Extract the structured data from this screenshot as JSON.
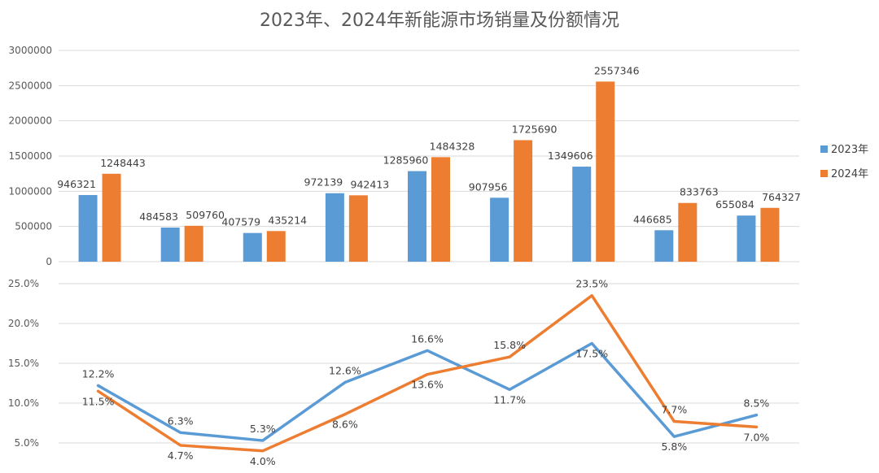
{
  "chart_data": [
    {
      "type": "bar",
      "title": "2023年、2024年新能源市场销量及份额情况",
      "categories": [
        "",
        "",
        "",
        "",
        "",
        "",
        "",
        "",
        ""
      ],
      "series": [
        {
          "name": "2023年",
          "color": "#5b9bd5",
          "values": [
            946321,
            484583,
            407579,
            972139,
            1285960,
            907956,
            1349606,
            446685,
            655084
          ]
        },
        {
          "name": "2024年",
          "color": "#ed7d31",
          "values": [
            1248443,
            509760,
            435214,
            942413,
            1484328,
            1725690,
            2557346,
            833763,
            764327
          ]
        }
      ],
      "ylim": [
        0,
        3000000
      ],
      "yticks": [
        "0",
        "500000",
        "1000000",
        "1500000",
        "2000000",
        "2500000",
        "3000000"
      ],
      "grid": true,
      "legend": "right"
    },
    {
      "type": "line",
      "series": [
        {
          "name": "2023年",
          "color": "#5b9bd5",
          "values": [
            12.2,
            6.3,
            5.3,
            12.6,
            16.6,
            11.7,
            17.5,
            5.8,
            8.5
          ],
          "labels": [
            "12.2%",
            "6.3%",
            "5.3%",
            "12.6%",
            "16.6%",
            "11.7%",
            "17.5%",
            "5.8%",
            "8.5%"
          ]
        },
        {
          "name": "2024年",
          "color": "#ed7d31",
          "values": [
            11.5,
            4.7,
            4.0,
            8.6,
            13.6,
            15.8,
            23.5,
            7.7,
            7.0
          ],
          "labels": [
            "11.5%",
            "4.7%",
            "4.0%",
            "8.6%",
            "13.6%",
            "15.8%",
            "23.5%",
            "7.7%",
            "7.0%"
          ]
        }
      ],
      "ylim": [
        5,
        25
      ],
      "yticks": [
        "5.0%",
        "10.0%",
        "15.0%",
        "20.0%",
        "25.0%"
      ],
      "grid": true
    }
  ]
}
